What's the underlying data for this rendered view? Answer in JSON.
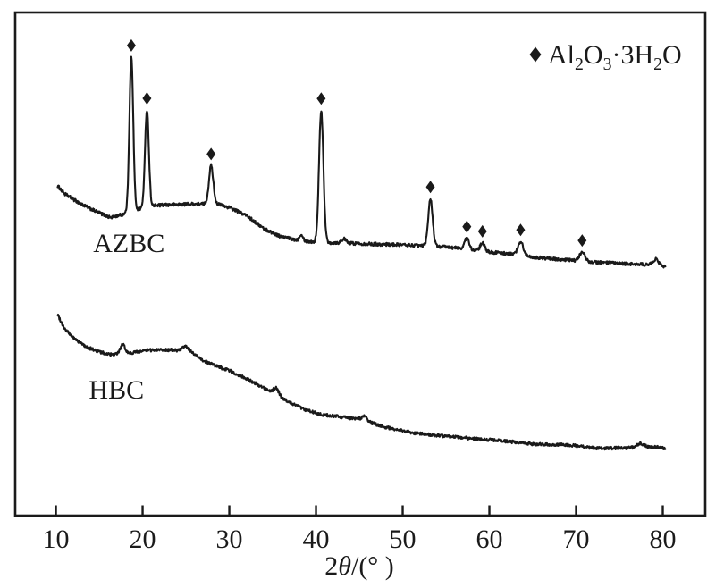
{
  "figure_title": "",
  "colors": {
    "line": "#1a1a1a",
    "background": "#ffffff",
    "text": "#1a1a1a"
  },
  "chart_data": {
    "type": "line",
    "title": "",
    "xlabel_plain": "2θ/(° )",
    "xlabel_segments": [
      {
        "t": "2"
      },
      {
        "t": "θ",
        "italic": true
      },
      {
        "t": "/(° )"
      }
    ],
    "ylabel": "",
    "xlim": [
      5.2,
      85.0
    ],
    "ylim": [
      0,
      100
    ],
    "grid": false,
    "x_ticks": [
      {
        "value": 10,
        "label": "10"
      },
      {
        "value": 20,
        "label": "20"
      },
      {
        "value": 30,
        "label": "30"
      },
      {
        "value": 40,
        "label": "40"
      },
      {
        "value": 50,
        "label": "50"
      },
      {
        "value": 60,
        "label": "60"
      },
      {
        "value": 70,
        "label": "70"
      },
      {
        "value": 80,
        "label": "80"
      }
    ],
    "legend": {
      "position": "top-right",
      "marker": "diamond",
      "label_plain": "Al2O3·3H2O",
      "label_segments": [
        {
          "t": "Al"
        },
        {
          "t": "2",
          "sub": true
        },
        {
          "t": "O"
        },
        {
          "t": "3",
          "sub": true
        },
        {
          "t": "·3H"
        },
        {
          "t": "2",
          "sub": true
        },
        {
          "t": "O"
        }
      ]
    },
    "sample_step": 0.05,
    "series": [
      {
        "name": "AZBC",
        "seed": 1234,
        "noise": 0.32,
        "x_start": 10.2,
        "x_end": 80.3,
        "label_x": 14.3,
        "label_y": 52.4,
        "baseline": [
          [
            10.2,
            65.5
          ],
          [
            11,
            63.9
          ],
          [
            12.8,
            62.0
          ],
          [
            14.5,
            60.5
          ],
          [
            16.3,
            59.2
          ],
          [
            17.6,
            59.8
          ],
          [
            19.6,
            60.9
          ],
          [
            21.5,
            61.6
          ],
          [
            24,
            61.8
          ],
          [
            26,
            61.9
          ],
          [
            28.6,
            61.9
          ],
          [
            30,
            61.2
          ],
          [
            32,
            59.6
          ],
          [
            34,
            57.0
          ],
          [
            36,
            55.4
          ],
          [
            38,
            54.7
          ],
          [
            40,
            54.3
          ],
          [
            43,
            54.2
          ],
          [
            46,
            54.0
          ],
          [
            50,
            53.8
          ],
          [
            54,
            53.5
          ],
          [
            57,
            53.1
          ],
          [
            60,
            52.4
          ],
          [
            63,
            51.9
          ],
          [
            66,
            51.2
          ],
          [
            69,
            50.8
          ],
          [
            72,
            50.4
          ],
          [
            75,
            50.1
          ],
          [
            78,
            49.9
          ],
          [
            80.3,
            49.4
          ]
        ],
        "peaks": [
          {
            "x": 18.7,
            "h": 30.6,
            "w": 0.22,
            "marked": true
          },
          {
            "x": 20.5,
            "h": 19.3,
            "w": 0.22,
            "marked": true
          },
          {
            "x": 27.9,
            "h": 7.6,
            "w": 0.25,
            "marked": true
          },
          {
            "x": 38.3,
            "h": 1.3,
            "w": 0.2,
            "marked": false
          },
          {
            "x": 40.6,
            "h": 26.2,
            "w": 0.25,
            "marked": true
          },
          {
            "x": 43.2,
            "h": 0.8,
            "w": 0.25,
            "marked": false
          },
          {
            "x": 53.2,
            "h": 9.4,
            "w": 0.25,
            "marked": true
          },
          {
            "x": 57.4,
            "h": 2.1,
            "w": 0.25,
            "marked": true
          },
          {
            "x": 59.2,
            "h": 1.6,
            "w": 0.25,
            "marked": true
          },
          {
            "x": 63.6,
            "h": 2.7,
            "w": 0.3,
            "marked": true
          },
          {
            "x": 70.7,
            "h": 1.8,
            "w": 0.3,
            "marked": true
          },
          {
            "x": 79.2,
            "h": 1.3,
            "w": 0.35,
            "marked": false
          }
        ]
      },
      {
        "name": "HBC",
        "seed": 99,
        "noise": 0.3,
        "x_start": 10.2,
        "x_end": 80.3,
        "label_x": 13.8,
        "label_y": 23.4,
        "baseline": [
          [
            10.2,
            40.0
          ],
          [
            11,
            37.2
          ],
          [
            12,
            35.4
          ],
          [
            13.5,
            33.6
          ],
          [
            15,
            32.6
          ],
          [
            16.5,
            32.0
          ],
          [
            18,
            32.2
          ],
          [
            20,
            32.8
          ],
          [
            22,
            33.1
          ],
          [
            24,
            32.9
          ],
          [
            25.7,
            32.3
          ],
          [
            27,
            30.9
          ],
          [
            28.5,
            29.8
          ],
          [
            30,
            28.9
          ],
          [
            31.5,
            27.7
          ],
          [
            33,
            26.4
          ],
          [
            34.5,
            24.9
          ],
          [
            36,
            23.5
          ],
          [
            37.5,
            22.2
          ],
          [
            39,
            21.0
          ],
          [
            41,
            20.1
          ],
          [
            43,
            19.7
          ],
          [
            45,
            19.3
          ],
          [
            48,
            17.7
          ],
          [
            51.5,
            16.5
          ],
          [
            55,
            15.9
          ],
          [
            58.5,
            15.4
          ],
          [
            62,
            14.9
          ],
          [
            65.5,
            14.3
          ],
          [
            69,
            14.2
          ],
          [
            72.5,
            13.5
          ],
          [
            76,
            13.6
          ],
          [
            79,
            13.8
          ],
          [
            80.3,
            13.5
          ]
        ],
        "peaks": [
          {
            "x": 17.7,
            "h": 1.8,
            "w": 0.3,
            "marked": false
          },
          {
            "x": 25.0,
            "h": 1.1,
            "w": 0.4,
            "marked": false
          },
          {
            "x": 35.4,
            "h": 1.4,
            "w": 0.3,
            "marked": false
          },
          {
            "x": 45.6,
            "h": 0.8,
            "w": 0.3,
            "marked": false
          },
          {
            "x": 77.4,
            "h": 0.8,
            "w": 0.4,
            "marked": false
          }
        ]
      }
    ]
  }
}
